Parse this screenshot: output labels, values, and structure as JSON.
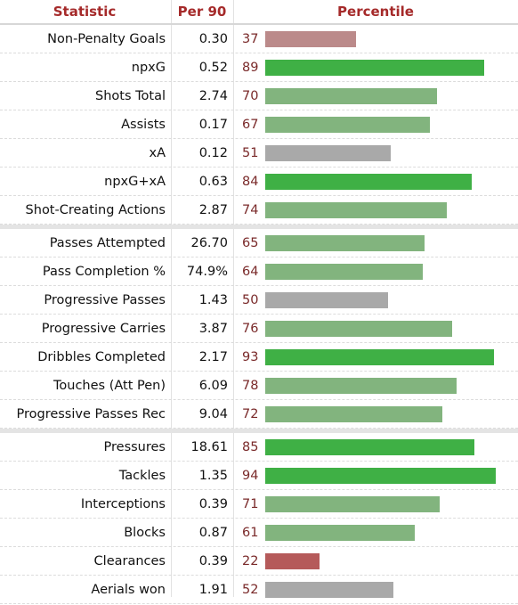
{
  "header": {
    "statistic": "Statistic",
    "per90": "Per 90",
    "percentile": "Percentile"
  },
  "colors": {
    "high": "#3fb045",
    "mid_high": "#82b47e",
    "average": "#a9a9a9",
    "low_mid": "#bb8a8a",
    "low": "#b55a5a",
    "pct_text": "#7a2a2a",
    "header_text": "#a52a2a"
  },
  "chart_data": {
    "type": "bar",
    "xlim": [
      0,
      100
    ],
    "groups": [
      {
        "rows": [
          {
            "stat": "Non-Penalty Goals",
            "per90": "0.30",
            "percentile": 37
          },
          {
            "stat": "npxG",
            "per90": "0.52",
            "percentile": 89
          },
          {
            "stat": "Shots Total",
            "per90": "2.74",
            "percentile": 70
          },
          {
            "stat": "Assists",
            "per90": "0.17",
            "percentile": 67
          },
          {
            "stat": "xA",
            "per90": "0.12",
            "percentile": 51
          },
          {
            "stat": "npxG+xA",
            "per90": "0.63",
            "percentile": 84
          },
          {
            "stat": "Shot-Creating Actions",
            "per90": "2.87",
            "percentile": 74
          }
        ]
      },
      {
        "rows": [
          {
            "stat": "Passes Attempted",
            "per90": "26.70",
            "percentile": 65
          },
          {
            "stat": "Pass Completion %",
            "per90": "74.9%",
            "percentile": 64
          },
          {
            "stat": "Progressive Passes",
            "per90": "1.43",
            "percentile": 50
          },
          {
            "stat": "Progressive Carries",
            "per90": "3.87",
            "percentile": 76
          },
          {
            "stat": "Dribbles Completed",
            "per90": "2.17",
            "percentile": 93
          },
          {
            "stat": "Touches (Att Pen)",
            "per90": "6.09",
            "percentile": 78
          },
          {
            "stat": "Progressive Passes Rec",
            "per90": "9.04",
            "percentile": 72
          }
        ]
      },
      {
        "rows": [
          {
            "stat": "Pressures",
            "per90": "18.61",
            "percentile": 85
          },
          {
            "stat": "Tackles",
            "per90": "1.35",
            "percentile": 94
          },
          {
            "stat": "Interceptions",
            "per90": "0.39",
            "percentile": 71
          },
          {
            "stat": "Blocks",
            "per90": "0.87",
            "percentile": 61
          },
          {
            "stat": "Clearances",
            "per90": "0.39",
            "percentile": 22
          },
          {
            "stat": "Aerials won",
            "per90": "1.91",
            "percentile": 52
          }
        ]
      }
    ]
  }
}
